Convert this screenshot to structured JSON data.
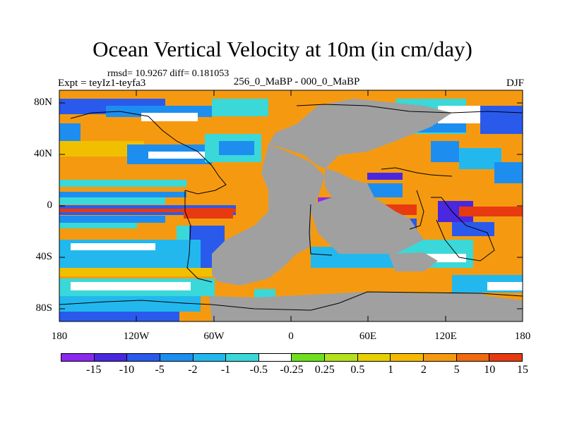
{
  "title": "Ocean Vertical Velocity at 10m (in cm/day)",
  "stats": "rmsd= 10.9267 diff= 0.181053",
  "experiment": "Expt = teyIz1-teyfa3",
  "comparison": "256_0_MaBP - 000_0_MaBP",
  "season": "DJF",
  "map": {
    "longitude_range": [
      -180,
      180
    ],
    "latitude_range": [
      -90,
      90
    ],
    "land_color": "#a0a0a0",
    "lat_tick_labels": [
      "80N",
      "40N",
      "0",
      "40S",
      "80S"
    ],
    "lon_tick_labels": [
      "180",
      "120W",
      "60W",
      "0",
      "60E",
      "120E",
      "180"
    ]
  },
  "colorbar": {
    "colors": [
      "#8a28f0",
      "#4a28e0",
      "#2a5aec",
      "#1d8ef0",
      "#22b8ee",
      "#3ad8d8",
      "#ffffff",
      "#6ee01e",
      "#b4e01c",
      "#e6d000",
      "#f5ba00",
      "#f59a10",
      "#f06a10",
      "#e83a10"
    ],
    "labels": [
      "-15",
      "-10",
      "-5",
      "-2",
      "-1",
      "-0.5",
      "-0.25",
      "0.25",
      "0.5",
      "1",
      "2",
      "5",
      "10",
      "15"
    ]
  }
}
